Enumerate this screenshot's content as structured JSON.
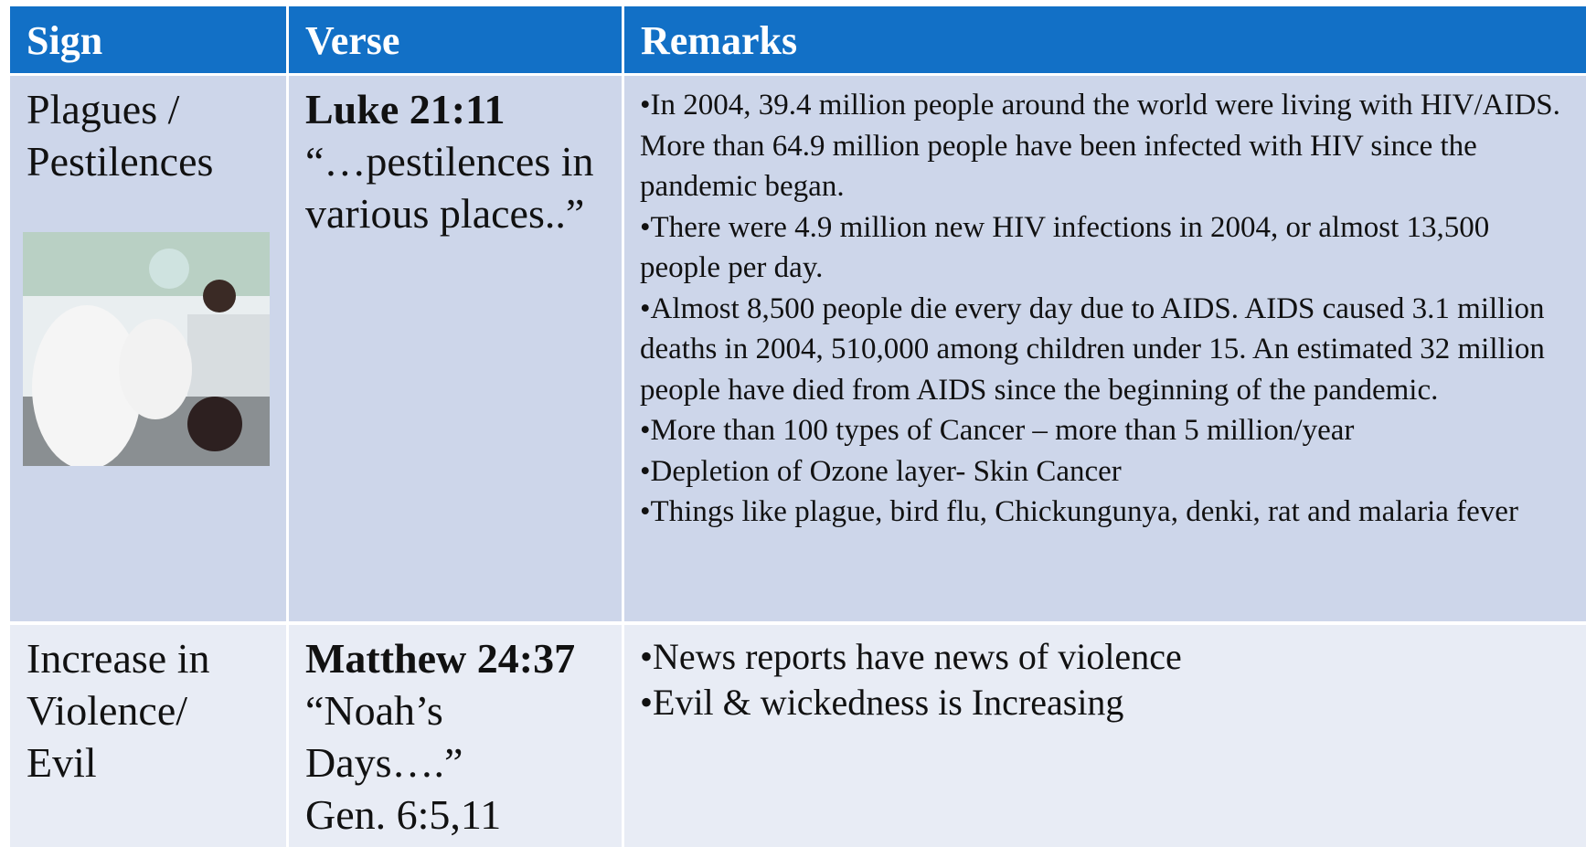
{
  "table": {
    "header": [
      "Sign",
      "Verse",
      "Remarks"
    ],
    "rows": [
      {
        "sign": "Plagues / Pestilences",
        "verse_ref": "Luke 21:11",
        "verse_text": [
          "“…pestilences in various places..”"
        ],
        "remarks": [
          "•In 2004, 39.4 million people around the world were living with HIV/AIDS. More than 64.9 million people have been infected with HIV since the pandemic began.",
          "•There were 4.9 million new HIV infections in 2004, or almost 13,500 people per day.",
          "•Almost 8,500 people die every day due to AIDS. AIDS caused 3.1 million deaths in 2004, 510,000 among children under 15. An estimated 32 million people have died from AIDS since the beginning of the pandemic.",
          "•More than 100 types of Cancer – more than 5 million/year",
          "•Depletion of Ozone layer- Skin Cancer",
          "•Things like  plague, bird flu, Chickungunya, denki, rat and malaria fever"
        ]
      },
      {
        "sign": "Increase in Violence/ Evil",
        "verse_ref": "Matthew 24:37",
        "verse_text": [
          "“Noah’s Days….”",
          "Gen. 6:5,11"
        ],
        "remarks": [
          "•News reports have news of violence",
          "•Evil & wickedness is Increasing"
        ]
      }
    ]
  }
}
